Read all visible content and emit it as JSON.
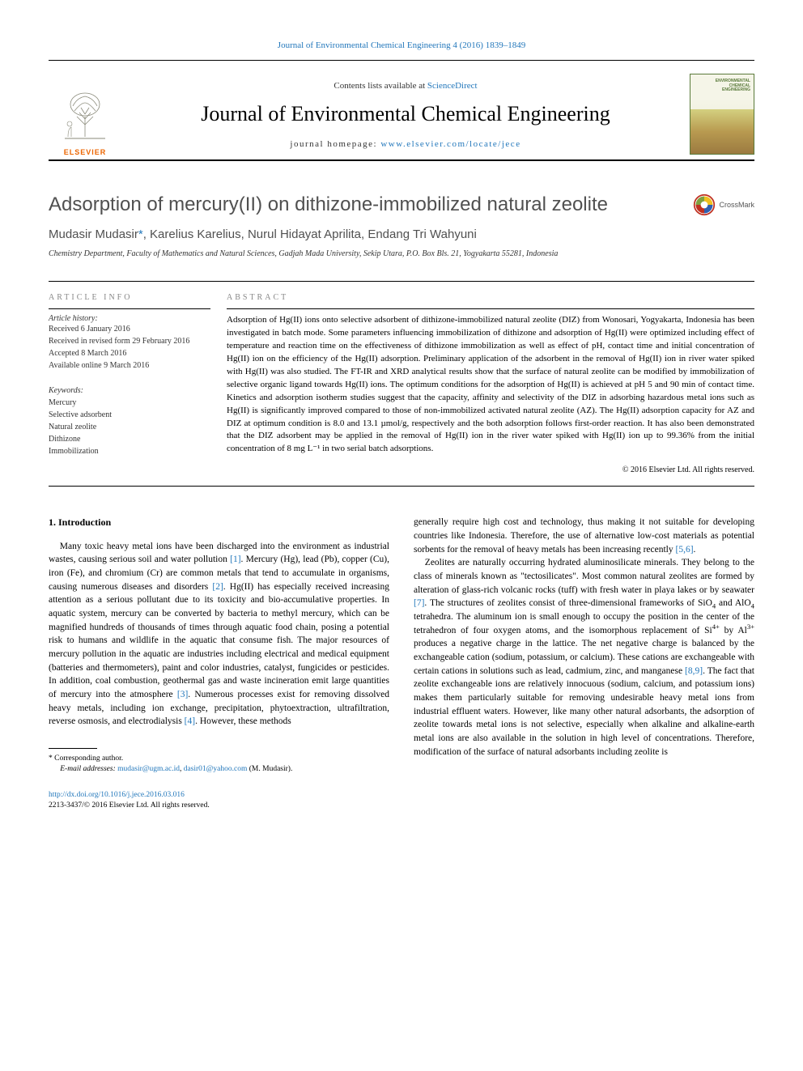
{
  "header": {
    "citation_prefix": "Journal of Environmental Chemical Engineering 4 (2016) 1839–1849",
    "contents_line_pre": "Contents lists available at ",
    "sciencedirect": "ScienceDirect",
    "journal_title": "Journal of Environmental Chemical Engineering",
    "homepage_pre": "journal homepage: ",
    "homepage_url": "www.elsevier.com/locate/jece",
    "elsevier_label": "ELSEVIER",
    "cover_text": "ENVIRONMENTAL\nCHEMICAL\nENGINEERING"
  },
  "crossmark": {
    "label": "CrossMark"
  },
  "article": {
    "title": "Adsorption of mercury(II) on dithizone-immobilized natural zeolite",
    "authors_html": "Mudasir Mudasir<span class=\"corr\">*</span>, Karelius Karelius, Nurul Hidayat Aprilita, Endang Tri Wahyuni",
    "affiliation": "Chemistry Department, Faculty of Mathematics and Natural Sciences, Gadjah Mada University, Sekip Utara, P.O. Box Bls. 21, Yogyakarta 55281, Indonesia"
  },
  "info": {
    "label": "ARTICLE INFO",
    "history_label": "Article history:",
    "history": [
      "Received 6 January 2016",
      "Received in revised form 29 February 2016",
      "Accepted 8 March 2016",
      "Available online 9 March 2016"
    ],
    "keywords_label": "Keywords:",
    "keywords": [
      "Mercury",
      "Selective adsorbent",
      "Natural zeolite",
      "Dithizone",
      "Immobilization"
    ]
  },
  "abstract": {
    "label": "ABSTRACT",
    "text": "Adsorption of Hg(II) ions onto selective adsorbent of dithizone-immobilized natural zeolite (DIZ) from Wonosari, Yogyakarta, Indonesia has been investigated in batch mode. Some parameters influencing immobilization of dithizone and adsorption of Hg(II) were optimized including effect of temperature and reaction time on the effectiveness of dithizone immobilization as well as effect of pH, contact time and initial concentration of Hg(II) ion on the efficiency of the Hg(II) adsorption. Preliminary application of the adsorbent in the removal of Hg(II) ion in river water spiked with Hg(II) was also studied. The FT-IR and XRD analytical results show that the surface of natural zeolite can be modified by immobilization of selective organic ligand towards Hg(II) ions. The optimum conditions for the adsorption of Hg(II) is achieved at pH 5 and 90 min of contact time. Kinetics and adsorption isotherm studies suggest that the capacity, affinity and selectivity of the DIZ in adsorbing hazardous metal ions such as Hg(II) is significantly improved compared to those of non-immobilized activated natural zeolite (AZ). The Hg(II) adsorption capacity for AZ and DIZ at optimum condition is 8.0 and 13.1 µmol/g, respectively and the both adsorption follows first-order reaction. It has also been demonstrated that the DIZ adsorbent may be applied in the removal of Hg(II) ion in the river water spiked with Hg(II) ion up to 99.36% from the initial concentration of 8 mg L⁻¹ in two serial batch adsorptions.",
    "copyright": "© 2016 Elsevier Ltd. All rights reserved."
  },
  "body": {
    "section_heading": "1. Introduction",
    "col1_html": "Many toxic heavy metal ions have been discharged into the environment as industrial wastes, causing serious soil and water pollution <span class=\"ref\">[1]</span>. Mercury (Hg), lead (Pb), copper (Cu), iron (Fe), and chromium (Cr) are common metals that tend to accumulate in organisms, causing numerous diseases and disorders <span class=\"ref\">[2]</span>. Hg(II) has especially received increasing attention as a serious pollutant due to its toxicity and bio-accumulative properties. In aquatic system, mercury can be converted by bacteria to methyl mercury, which can be magnified hundreds of thousands of times through aquatic food chain, posing a potential risk to humans and wildlife in the aquatic that consume fish. The major resources of mercury pollution in the aquatic are industries including electrical and medical equipment (batteries and thermometers), paint and color industries, catalyst, fungicides or pesticides. In addition, coal combustion, geothermal gas and waste incineration emit large quantities of mercury into the atmosphere <span class=\"ref\">[3]</span>. Numerous processes exist for removing dissolved heavy metals, including ion exchange, precipitation, phytoextraction, ultrafiltration, reverse osmosis, and electrodialysis <span class=\"ref\">[4]</span>. However, these methods",
    "col2_p1_html": "generally require high cost and technology, thus making it not suitable for developing countries like Indonesia. Therefore, the use of alternative low-cost materials as potential sorbents for the removal of heavy metals has been increasing recently <span class=\"ref\">[5,6]</span>.",
    "col2_p2_html": "Zeolites are naturally occurring hydrated aluminosilicate minerals. They belong to the class of minerals known as \"tectosilicates\". Most common natural zeolites are formed by alteration of glass-rich volcanic rocks (tuff) with fresh water in playa lakes or by seawater <span class=\"ref\">[7]</span>. The structures of zeolites consist of three-dimensional frameworks of SiO<sub>4</sub> and AlO<sub>4</sub> tetrahedra. The aluminum ion is small enough to occupy the position in the center of the tetrahedron of four oxygen atoms, and the isomorphous replacement of Si<sup>4+</sup> by Al<sup>3+</sup> produces a negative charge in the lattice. The net negative charge is balanced by the exchangeable cation (sodium, potassium, or calcium). These cations are exchangeable with certain cations in solutions such as lead, cadmium, zinc, and manganese <span class=\"ref\">[8,9]</span>. The fact that zeolite exchangeable ions are relatively innocuous (sodium, calcium, and potassium ions) makes them particularly suitable for removing undesirable heavy metal ions from industrial effluent waters. However, like many other natural adsorbants, the adsorption of zeolite towards metal ions is not selective, especially when alkaline and alkaline-earth metal ions are also available in the solution in high level of concentrations. Therefore, modification of the surface of natural adsorbants including zeolite is"
  },
  "footnote": {
    "corr_label": "* Corresponding author.",
    "email_label": "E-mail addresses:",
    "email1": "mudasir@ugm.ac.id",
    "email2": "dasir01@yahoo.com",
    "email_tail": "(M. Mudasir)."
  },
  "doi": {
    "url": "http://dx.doi.org/10.1016/j.jece.2016.03.016",
    "copyright": "2213-3437/© 2016 Elsevier Ltd. All rights reserved."
  },
  "colors": {
    "link": "#2277bb",
    "elsevier_orange": "#ec6500",
    "title_gray": "#505050",
    "cover_green": "#5a7a3a"
  }
}
